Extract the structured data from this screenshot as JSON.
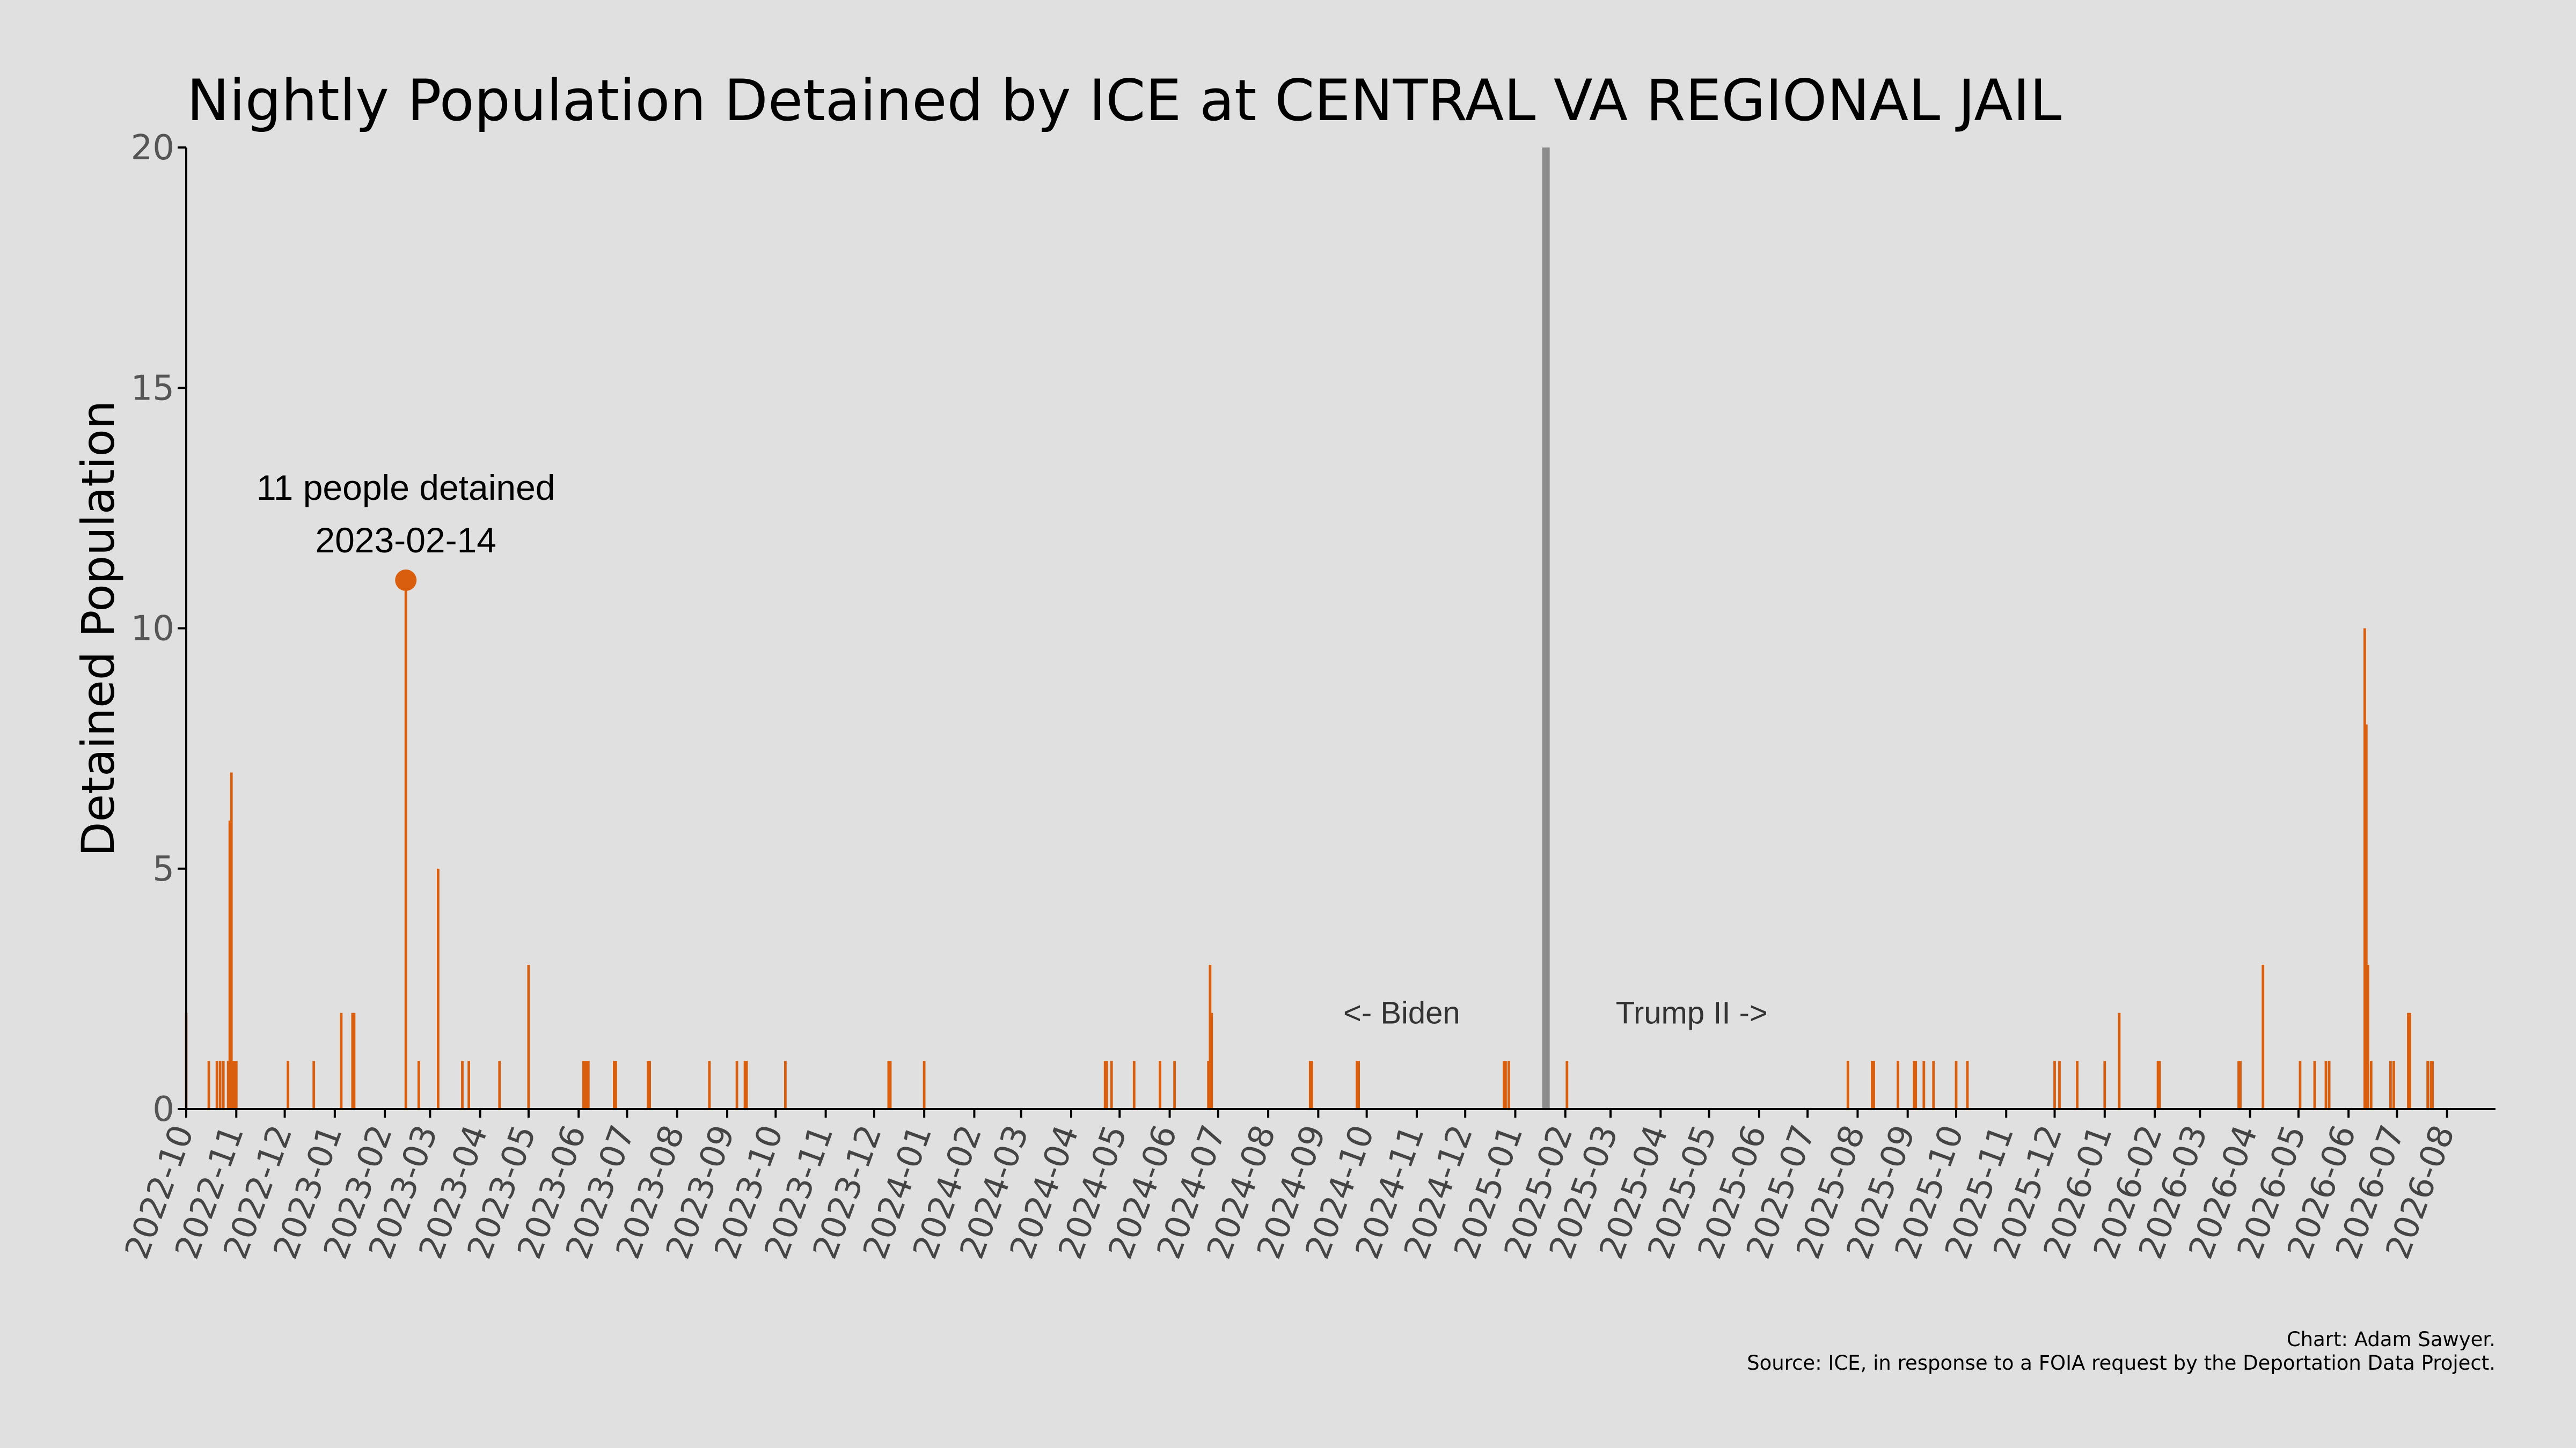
{
  "chart_data": {
    "type": "bar",
    "title": "Nightly Population Detained by ICE at CENTRAL VA REGIONAL JAIL",
    "ylabel": "Detained Population",
    "xlabel": "",
    "ylim": [
      0,
      20
    ],
    "yticks": [
      0,
      5,
      10,
      15,
      20
    ],
    "xlim": [
      "2022-10-01",
      "2026-08-31"
    ],
    "xtick_labels": [
      "2022-10",
      "2022-11",
      "2022-12",
      "2023-01",
      "2023-02",
      "2023-03",
      "2023-04",
      "2023-05",
      "2023-06",
      "2023-07",
      "2023-08",
      "2023-09",
      "2023-10",
      "2023-11",
      "2023-12",
      "2024-01",
      "2024-02",
      "2024-03",
      "2024-04",
      "2024-05",
      "2024-06",
      "2024-07",
      "2024-08",
      "2024-09",
      "2024-10",
      "2024-11",
      "2024-12",
      "2025-01",
      "2025-02",
      "2025-03",
      "2025-04",
      "2025-05",
      "2025-06",
      "2025-07",
      "2025-08",
      "2025-09",
      "2025-10",
      "2025-11",
      "2025-12",
      "2026-01",
      "2026-02",
      "2026-03",
      "2026-04",
      "2026-05",
      "2026-06",
      "2026-07",
      "2026-08"
    ],
    "grid": false,
    "bar_color": "#d95f0e",
    "series": [
      {
        "x": [
          "2022-10-01",
          "2022-10-15",
          "2022-10-20",
          "2022-10-22",
          "2022-10-24",
          "2022-10-27",
          "2022-10-28",
          "2022-10-29",
          "2022-10-30",
          "2022-10-31",
          "2022-11-01",
          "2022-12-03",
          "2022-12-19",
          "2023-01-05",
          "2023-01-12",
          "2023-01-13",
          "2023-02-14",
          "2023-02-22",
          "2023-03-06",
          "2023-03-21",
          "2023-03-25",
          "2023-04-13",
          "2023-05-01",
          "2023-06-04",
          "2023-06-05",
          "2023-06-06",
          "2023-06-07",
          "2023-06-23",
          "2023-06-24",
          "2023-07-14",
          "2023-07-15",
          "2023-08-21",
          "2023-09-07",
          "2023-09-12",
          "2023-09-13",
          "2023-10-07",
          "2023-12-10",
          "2023-12-11",
          "2024-01-01",
          "2024-04-22",
          "2024-04-23",
          "2024-04-26",
          "2024-05-10",
          "2024-05-26",
          "2024-06-04",
          "2024-06-25",
          "2024-06-26",
          "2024-06-27",
          "2024-08-27",
          "2024-08-28",
          "2024-09-25",
          "2024-09-26",
          "2024-12-25",
          "2024-12-26",
          "2024-12-28",
          "2025-02-02",
          "2025-07-26",
          "2025-08-10",
          "2025-08-11",
          "2025-08-26",
          "2025-09-05",
          "2025-09-06",
          "2025-09-11",
          "2025-09-17",
          "2025-10-01",
          "2025-10-08",
          "2025-12-01",
          "2025-12-04",
          "2025-12-15",
          "2026-01-01",
          "2026-01-10",
          "2026-02-03",
          "2026-02-04",
          "2026-03-25",
          "2026-03-26",
          "2026-04-09",
          "2026-05-02",
          "2026-05-11",
          "2026-05-18",
          "2026-05-20",
          "2026-06-11",
          "2026-06-12",
          "2026-06-13",
          "2026-06-15",
          "2026-06-27",
          "2026-06-29",
          "2026-07-08",
          "2026-07-09",
          "2026-07-20",
          "2026-07-22",
          "2026-07-23"
        ],
        "values": [
          2,
          1,
          1,
          1,
          1,
          1,
          6,
          7,
          1,
          1,
          1,
          1,
          1,
          2,
          2,
          2,
          11,
          1,
          5,
          1,
          1,
          1,
          3,
          1,
          1,
          1,
          1,
          1,
          1,
          1,
          1,
          1,
          1,
          1,
          1,
          1,
          1,
          1,
          1,
          1,
          1,
          1,
          1,
          1,
          1,
          1,
          3,
          2,
          1,
          1,
          1,
          1,
          1,
          1,
          1,
          1,
          1,
          1,
          1,
          1,
          1,
          1,
          1,
          1,
          1,
          1,
          1,
          1,
          1,
          1,
          2,
          1,
          1,
          1,
          1,
          3,
          1,
          1,
          1,
          1,
          10,
          8,
          3,
          1,
          1,
          1,
          2,
          2,
          1,
          1,
          1
        ]
      }
    ],
    "highlight": {
      "date": "2023-02-14",
      "value": 11,
      "label_line1": "11 people detained",
      "label_line2": "2023-02-14",
      "color": "#d95f0e"
    },
    "divider": {
      "date": "2025-01-20",
      "color": "#8c8c8c",
      "left_label": "<- Biden",
      "right_label": "Trump II ->"
    },
    "credits": {
      "line1": "Chart: Adam Sawyer.",
      "line2": "Source: ICE, in response to a FOIA request by the Deportation Data Project."
    }
  }
}
